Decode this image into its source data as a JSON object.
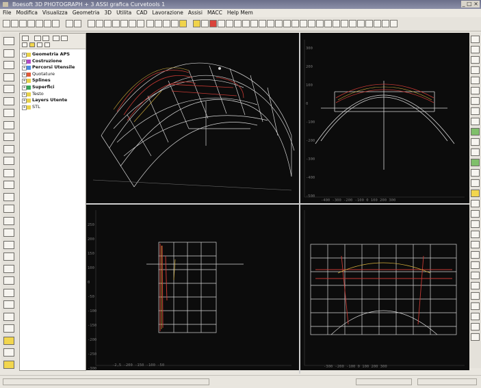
{
  "window": {
    "title": "Boesoft 3D PHOTOGRAPH + 3 ASSI grafica Curvetools 1",
    "controls": "_ □ ×"
  },
  "menu": [
    "File",
    "Modifica",
    "Visualizza",
    "Geometria",
    "3D",
    "Utilita",
    "CAD",
    "Lavorazione",
    "Assisi",
    "MACC",
    "Help Mem"
  ],
  "tree": {
    "items": [
      {
        "label": "Geometria APS",
        "color": "#e8d24a",
        "bold": true
      },
      {
        "label": "Costruzione",
        "color": "#b24cc7",
        "bold": true
      },
      {
        "label": "Percorsi Utensile",
        "color": "#4c8de0",
        "bold": true
      },
      {
        "label": "Quotature",
        "color": "#e05a3a",
        "bold": false
      },
      {
        "label": "Splines",
        "color": "#e8d24a",
        "bold": true
      },
      {
        "label": "Superfici",
        "color": "#3aa55a",
        "bold": true
      },
      {
        "label": "Testo",
        "color": "#e8d24a",
        "bold": false
      },
      {
        "label": "Layers Utente",
        "color": "#e8d24a",
        "bold": true
      },
      {
        "label": "STL",
        "color": "#e8d24a",
        "bold": false
      }
    ]
  },
  "viewports": {
    "top_right_scale_x": "-400  -300  -200  -100   0   100   200   300",
    "top_right_scale_y": [
      "300",
      "200",
      "100",
      "0",
      "-100",
      "-200",
      "-300",
      "-400",
      "-500"
    ],
    "bottom_left_scale_x": "-2,5  -200  -150  -100  -50",
    "bottom_left_scale_y": [
      "250",
      "200",
      "150",
      "100",
      "0",
      "-50",
      "-100",
      "-150",
      "-200",
      "-250",
      "-300"
    ],
    "bottom_right_scale_x": "-300  -200  -100  0  100  200  300"
  },
  "colors": {
    "viewport_bg": "#0c0c0c",
    "wire": "#d8d8d8",
    "accent_red": "#c83a34",
    "accent_yellow": "#d7b13b"
  }
}
